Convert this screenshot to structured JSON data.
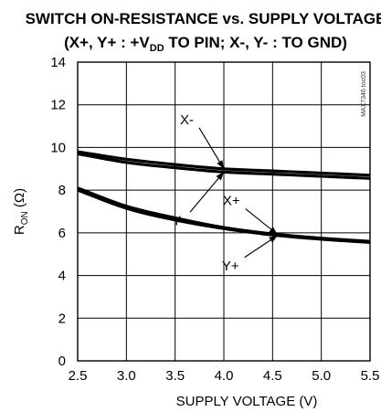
{
  "chart_data": {
    "type": "line",
    "title": "SWITCH ON-RESISTANCE vs. SUPPLY VOLTAGE",
    "subtitle_parts": [
      "(X+, Y+ : +V",
      "DD",
      " TO PIN; X-, Y- : TO GND)"
    ],
    "xlabel": "SUPPLY VOLTAGE (V)",
    "ylabel_main": "R",
    "ylabel_sub": "ON",
    "ylabel_unit": " (Ω)",
    "xlim": [
      2.5,
      5.5
    ],
    "ylim": [
      0,
      14
    ],
    "xticks": [
      "2.5",
      "3.0",
      "3.5",
      "4.0",
      "4.5",
      "5.0",
      "5.5"
    ],
    "yticks": [
      "0",
      "2",
      "4",
      "6",
      "8",
      "10",
      "12",
      "14"
    ],
    "grid": true,
    "figure_code": "MAX7346 toc03",
    "x": [
      2.5,
      3.0,
      3.5,
      4.0,
      4.5,
      5.0,
      5.5
    ],
    "series": [
      {
        "name": "X-",
        "values": [
          9.8,
          9.45,
          9.2,
          9.0,
          8.9,
          8.8,
          8.7
        ]
      },
      {
        "name": "Y-",
        "values": [
          9.7,
          9.3,
          9.05,
          8.85,
          8.75,
          8.65,
          8.55
        ]
      },
      {
        "name": "X+",
        "values": [
          8.1,
          7.25,
          6.7,
          6.25,
          5.95,
          5.75,
          5.6
        ]
      },
      {
        "name": "Y+",
        "values": [
          8.0,
          7.15,
          6.6,
          6.2,
          5.9,
          5.7,
          5.55
        ]
      }
    ],
    "annotations": [
      {
        "label": "X-",
        "series": "X-",
        "x_at": 4.0
      },
      {
        "label": "Y-",
        "series": "Y-",
        "x_at": 4.0
      },
      {
        "label": "X+",
        "series": "X+",
        "x_at": 4.55
      },
      {
        "label": "Y+",
        "series": "Y+",
        "x_at": 4.55
      }
    ]
  }
}
